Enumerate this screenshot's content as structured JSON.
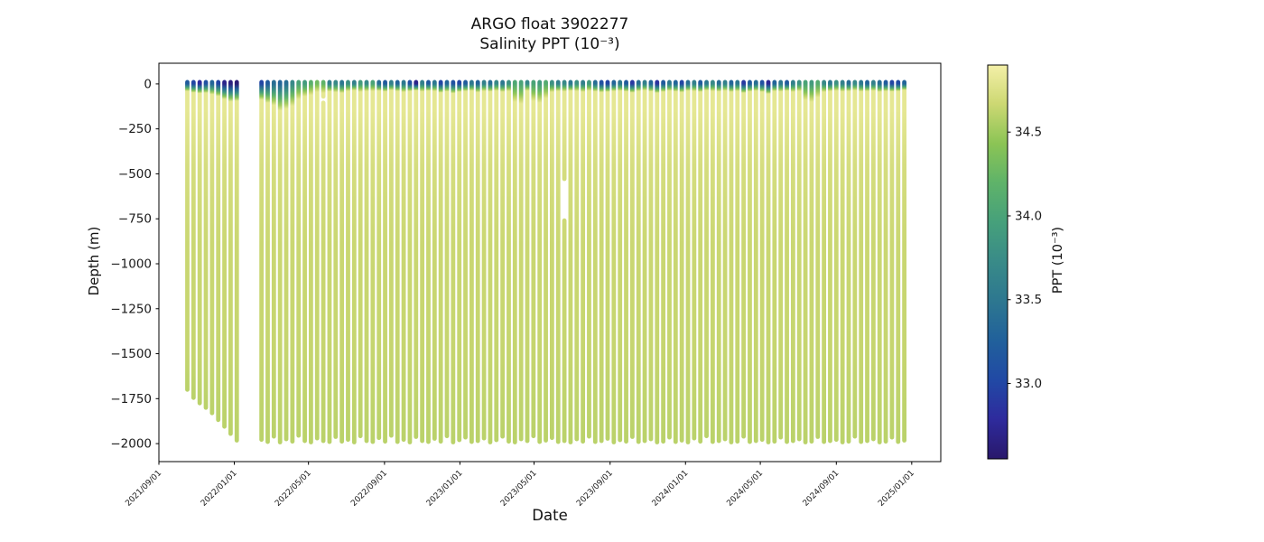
{
  "figure": {
    "title_line1": "ARGO float 3902277",
    "title_line2": "Salinity PPT (10⁻³)",
    "xlabel": "Date",
    "ylabel": "Depth (m)",
    "colorbar_label": "PPT (10⁻³)"
  },
  "chart_data": {
    "type": "scatter",
    "title": "ARGO float 3902277",
    "subtitle": "Salinity PPT (10⁻³)",
    "xlabel": "Date",
    "ylabel": "Depth (m)",
    "grid": false,
    "x_axis": {
      "range_days": [
        0,
        1265
      ],
      "epoch_label": "2021/09/01",
      "ticks": [
        {
          "day": 0,
          "label": "2021/09/01"
        },
        {
          "day": 122,
          "label": "2022/01/01"
        },
        {
          "day": 242,
          "label": "2022/05/01"
        },
        {
          "day": 365,
          "label": "2022/09/01"
        },
        {
          "day": 487,
          "label": "2023/01/01"
        },
        {
          "day": 607,
          "label": "2023/05/01"
        },
        {
          "day": 730,
          "label": "2023/09/01"
        },
        {
          "day": 852,
          "label": "2024/01/01"
        },
        {
          "day": 973,
          "label": "2024/05/01"
        },
        {
          "day": 1096,
          "label": "2024/09/01"
        },
        {
          "day": 1218,
          "label": "2025/01/01"
        }
      ]
    },
    "y_axis": {
      "range_m": [
        115,
        -2100
      ],
      "ticks": [
        {
          "value": 0,
          "label": "0"
        },
        {
          "value": -250,
          "label": "−250"
        },
        {
          "value": -500,
          "label": "−500"
        },
        {
          "value": -750,
          "label": "−750"
        },
        {
          "value": -1000,
          "label": "−1000"
        },
        {
          "value": -1250,
          "label": "−1250"
        },
        {
          "value": -1500,
          "label": "−1500"
        },
        {
          "value": -1750,
          "label": "−1750"
        },
        {
          "value": -2000,
          "label": "−2000"
        }
      ]
    },
    "colorbar": {
      "label": "PPT (10⁻³)",
      "range": [
        32.55,
        34.9
      ],
      "ticks": [
        {
          "value": 34.5,
          "label": "34.5"
        },
        {
          "value": 34.0,
          "label": "34.0"
        },
        {
          "value": 33.5,
          "label": "33.5"
        },
        {
          "value": 33.0,
          "label": "33.0"
        }
      ],
      "colormap_name": "haline-like",
      "colormap_stops": [
        [
          32.55,
          "#29186b"
        ],
        [
          32.79,
          "#2e2b9d"
        ],
        [
          33.02,
          "#2149a5"
        ],
        [
          33.26,
          "#21619b"
        ],
        [
          33.49,
          "#2d7790"
        ],
        [
          33.73,
          "#398b88"
        ],
        [
          33.96,
          "#46a07b"
        ],
        [
          34.2,
          "#5fb369"
        ],
        [
          34.43,
          "#8bc455"
        ],
        [
          34.67,
          "#cdd873"
        ],
        [
          34.9,
          "#f4f0a8"
        ]
      ]
    },
    "deep_salinity_structure_m_ppt": [
      [
        150,
        34.81
      ],
      [
        450,
        34.72
      ],
      [
        900,
        34.66
      ],
      [
        1500,
        34.64
      ],
      [
        2050,
        34.6
      ]
    ],
    "subsurface_max_ppt": 34.81,
    "profile_start_day": 46,
    "profile_interval_days": 10,
    "profile_fields": [
      "index",
      "bottom_depth_m",
      "surface_salinity_ppt",
      "mixed_layer_depth_m"
    ],
    "profiles": [
      [
        0,
        1700,
        33.2,
        40
      ],
      [
        1,
        1745,
        33.0,
        48
      ],
      [
        2,
        1775,
        32.8,
        52
      ],
      [
        3,
        1800,
        33.1,
        50
      ],
      [
        4,
        1830,
        33.3,
        58
      ],
      [
        5,
        1868,
        33.0,
        68
      ],
      [
        6,
        1905,
        32.7,
        85
      ],
      [
        7,
        1945,
        32.65,
        98
      ],
      [
        8,
        1982,
        32.6,
        95
      ],
      [
        12,
        1978,
        33.0,
        88
      ],
      [
        13,
        1990,
        33.2,
        105
      ],
      [
        14,
        1960,
        33.4,
        118
      ],
      [
        15,
        1992,
        33.3,
        148
      ],
      [
        16,
        1975,
        33.4,
        138
      ],
      [
        17,
        1988,
        33.7,
        122
      ],
      [
        18,
        1955,
        34.0,
        85
      ],
      [
        19,
        1985,
        33.9,
        70
      ],
      [
        20,
        1992,
        34.15,
        62
      ],
      [
        21,
        1970,
        34.3,
        45
      ],
      [
        22,
        1985,
        34.2,
        50
      ],
      [
        23,
        1990,
        33.6,
        42
      ],
      [
        24,
        1962,
        33.7,
        46
      ],
      [
        25,
        1988,
        33.5,
        50
      ],
      [
        26,
        1978,
        33.8,
        40
      ],
      [
        27,
        1992,
        33.6,
        36
      ],
      [
        28,
        1958,
        33.9,
        44
      ],
      [
        29,
        1985,
        33.7,
        40
      ],
      [
        30,
        1990,
        34.0,
        40
      ],
      [
        31,
        1968,
        33.4,
        38
      ],
      [
        32,
        1988,
        33.2,
        42
      ],
      [
        33,
        1955,
        33.6,
        35
      ],
      [
        34,
        1990,
        33.3,
        40
      ],
      [
        35,
        1978,
        33.5,
        45
      ],
      [
        36,
        1992,
        33.1,
        40
      ],
      [
        37,
        1962,
        32.7,
        36
      ],
      [
        38,
        1985,
        33.6,
        42
      ],
      [
        39,
        1990,
        33.2,
        38
      ],
      [
        40,
        1972,
        33.5,
        40
      ],
      [
        41,
        1988,
        33.0,
        48
      ],
      [
        42,
        1958,
        33.3,
        42
      ],
      [
        43,
        1992,
        33.1,
        52
      ],
      [
        44,
        1980,
        33.0,
        44
      ],
      [
        45,
        1965,
        33.2,
        40
      ],
      [
        46,
        1990,
        33.5,
        38
      ],
      [
        47,
        1985,
        33.3,
        46
      ],
      [
        48,
        1970,
        33.6,
        40
      ],
      [
        49,
        1992,
        33.4,
        42
      ],
      [
        50,
        1980,
        33.7,
        38
      ],
      [
        51,
        1960,
        33.5,
        44
      ],
      [
        52,
        1988,
        33.8,
        40
      ],
      [
        53,
        1992,
        34.05,
        100
      ],
      [
        54,
        1975,
        34.0,
        110
      ],
      [
        55,
        1985,
        33.7,
        38
      ],
      [
        56,
        1958,
        34.0,
        95
      ],
      [
        57,
        1990,
        33.9,
        105
      ],
      [
        58,
        1982,
        34.1,
        80
      ],
      [
        59,
        1968,
        33.8,
        45
      ],
      [
        60,
        1990,
        33.6,
        40
      ],
      [
        61,
        1985,
        33.7,
        42
      ],
      [
        62,
        1992,
        33.5,
        38
      ],
      [
        63,
        1975,
        33.8,
        40
      ],
      [
        64,
        1988,
        33.6,
        44
      ],
      [
        65,
        1960,
        33.9,
        38
      ],
      [
        66,
        1990,
        33.4,
        42
      ],
      [
        67,
        1985,
        33.1,
        46
      ],
      [
        68,
        1972,
        33.0,
        44
      ],
      [
        69,
        1992,
        33.3,
        40
      ],
      [
        70,
        1980,
        33.5,
        38
      ],
      [
        71,
        1988,
        33.2,
        42
      ],
      [
        72,
        1962,
        32.9,
        48
      ],
      [
        73,
        1990,
        33.4,
        40
      ],
      [
        74,
        1985,
        33.6,
        36
      ],
      [
        75,
        1975,
        33.3,
        42
      ],
      [
        76,
        1992,
        32.85,
        50
      ],
      [
        77,
        1988,
        33.2,
        44
      ],
      [
        78,
        1965,
        33.5,
        38
      ],
      [
        79,
        1990,
        33.3,
        42
      ],
      [
        80,
        1982,
        33.0,
        46
      ],
      [
        81,
        1992,
        33.4,
        38
      ],
      [
        82,
        1970,
        33.6,
        40
      ],
      [
        83,
        1988,
        33.2,
        44
      ],
      [
        84,
        1958,
        33.5,
        36
      ],
      [
        85,
        1990,
        33.7,
        40
      ],
      [
        86,
        1985,
        33.4,
        42
      ],
      [
        87,
        1975,
        33.6,
        38
      ],
      [
        88,
        1992,
        33.3,
        44
      ],
      [
        89,
        1988,
        33.5,
        40
      ],
      [
        90,
        1960,
        32.9,
        50
      ],
      [
        91,
        1990,
        33.2,
        42
      ],
      [
        92,
        1985,
        33.4,
        38
      ],
      [
        93,
        1978,
        33.1,
        44
      ],
      [
        94,
        1992,
        32.75,
        55
      ],
      [
        95,
        1988,
        33.3,
        40
      ],
      [
        96,
        1965,
        33.5,
        42
      ],
      [
        97,
        1990,
        33.2,
        38
      ],
      [
        98,
        1985,
        33.6,
        44
      ],
      [
        99,
        1975,
        33.8,
        40
      ],
      [
        100,
        1992,
        34.0,
        90
      ],
      [
        101,
        1988,
        33.9,
        100
      ],
      [
        102,
        1962,
        34.1,
        75
      ],
      [
        103,
        1990,
        33.7,
        45
      ],
      [
        104,
        1985,
        33.5,
        40
      ],
      [
        105,
        1978,
        33.8,
        38
      ],
      [
        106,
        1992,
        33.6,
        42
      ],
      [
        107,
        1988,
        33.4,
        40
      ],
      [
        108,
        1960,
        33.7,
        36
      ],
      [
        109,
        1990,
        33.5,
        42
      ],
      [
        110,
        1985,
        33.3,
        40
      ],
      [
        111,
        1975,
        33.6,
        38
      ],
      [
        112,
        1992,
        33.4,
        44
      ],
      [
        113,
        1988,
        33.2,
        40
      ],
      [
        114,
        1965,
        33.0,
        42
      ],
      [
        115,
        1990,
        33.05,
        40
      ],
      [
        116,
        1982,
        33.3,
        34
      ]
    ],
    "missing_profile_indices": [
      9,
      10,
      11
    ],
    "profile_gaps_m": {
      "22": [
        70,
        105
      ],
      "61": [
        528,
        760
      ]
    }
  }
}
